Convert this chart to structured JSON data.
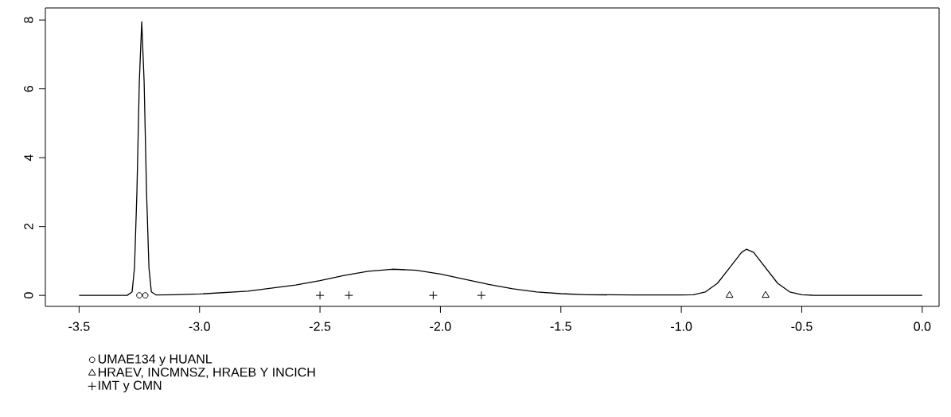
{
  "chart_data": {
    "type": "line",
    "xlim": [
      -3.64,
      0.07
    ],
    "ylim": [
      -0.32,
      8.35
    ],
    "xticks": [
      {
        "value": -3.5,
        "label": "-3.5"
      },
      {
        "value": -3.0,
        "label": "-3.0"
      },
      {
        "value": -2.5,
        "label": "-2.5"
      },
      {
        "value": -2.0,
        "label": "-2.0"
      },
      {
        "value": -1.5,
        "label": "-1.5"
      },
      {
        "value": -1.0,
        "label": "-1.0"
      },
      {
        "value": -0.5,
        "label": "-0.5"
      },
      {
        "value": 0.0,
        "label": "0.0"
      }
    ],
    "yticks": [
      0,
      2,
      4,
      6,
      8
    ],
    "legend": "bottom left",
    "series": [
      {
        "color": "#000000",
        "marker": "none",
        "x": [
          -3.5,
          -3.3,
          -3.28,
          -3.27,
          -3.26,
          -3.25,
          -3.24,
          -3.23,
          -3.22,
          -3.21,
          -3.2,
          -3.18,
          -3.1,
          -3.0,
          -2.8,
          -2.6,
          -2.5,
          -2.4,
          -2.3,
          -2.2,
          -2.1,
          -2.0,
          -1.9,
          -1.8,
          -1.7,
          -1.6,
          -1.5,
          -1.4,
          -1.2,
          -1.0,
          -0.95,
          -0.9,
          -0.85,
          -0.8,
          -0.75,
          -0.73,
          -0.7,
          -0.65,
          -0.6,
          -0.55,
          -0.5,
          -0.45,
          0.0
        ],
        "values": [
          0,
          0,
          0.1,
          0.8,
          3,
          6.2,
          7.95,
          6.2,
          3,
          0.8,
          0.1,
          0.01,
          0.02,
          0.04,
          0.12,
          0.3,
          0.43,
          0.58,
          0.7,
          0.76,
          0.73,
          0.62,
          0.47,
          0.32,
          0.19,
          0.1,
          0.05,
          0.02,
          0.01,
          0.01,
          0.02,
          0.1,
          0.35,
          0.8,
          1.25,
          1.34,
          1.25,
          0.8,
          0.35,
          0.1,
          0.02,
          0,
          0
        ]
      },
      {
        "type": "scatter",
        "name": "UMAE134 y HUANL",
        "color": "#000000",
        "marker": "circle",
        "x": [
          -3.25,
          -3.225
        ],
        "values": [
          0,
          0
        ]
      },
      {
        "type": "scatter",
        "name": "HRAEV, INCMNSZ, HRAEB Y INCICH",
        "color": "#000000",
        "marker": "triangle",
        "x": [
          -0.8,
          -0.65
        ],
        "values": [
          0,
          0
        ]
      },
      {
        "type": "scatter",
        "name": "IMT y CMN",
        "color": "#000000",
        "marker": "cross",
        "x": [
          -2.5,
          -2.38,
          -2.03,
          -1.83
        ],
        "values": [
          0,
          0,
          0,
          0
        ]
      }
    ]
  }
}
